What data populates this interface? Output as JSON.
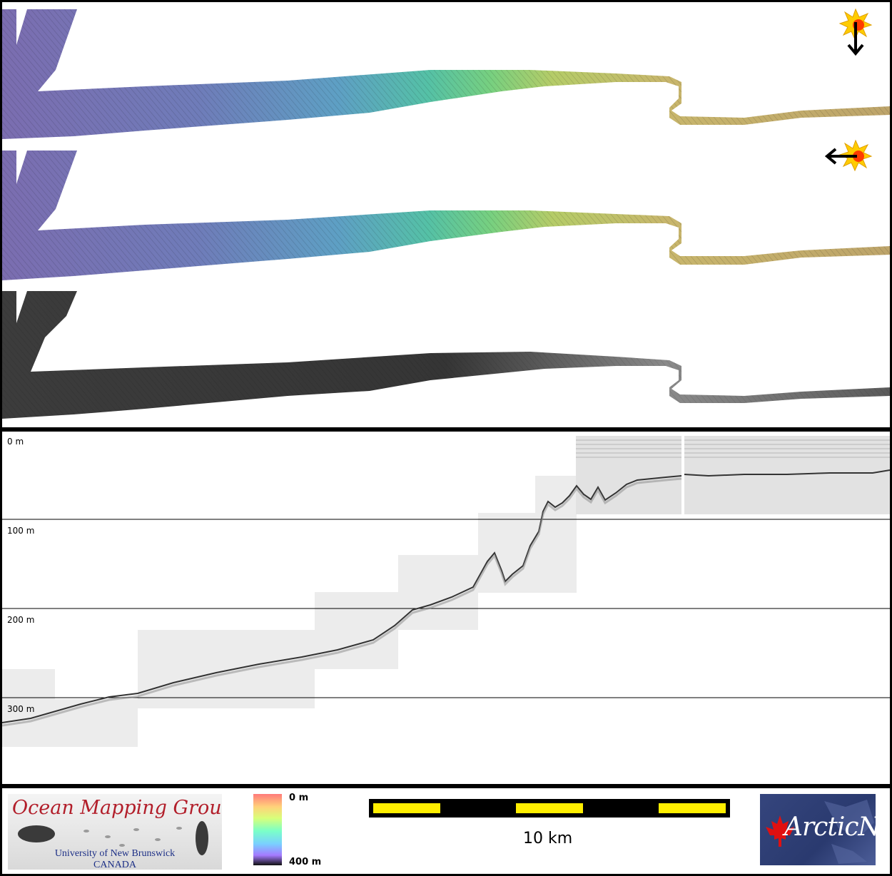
{
  "depth_profile": {
    "labels": [
      "0 m",
      "100 m",
      "200 m",
      "300 m"
    ]
  },
  "colorbar": {
    "top_label": "0 m",
    "bottom_label": "400 m"
  },
  "scale": {
    "label": "10 km"
  },
  "logos": {
    "omg_title": "Ocean Mapping Group",
    "omg_university": "University of New Brunswick",
    "omg_country": "CANADA",
    "arcticnet_text": "ArcticNet"
  },
  "icons": [
    "sun-icon",
    "arrow-down-icon",
    "arrow-left-icon",
    "maple-leaf-icon"
  ]
}
